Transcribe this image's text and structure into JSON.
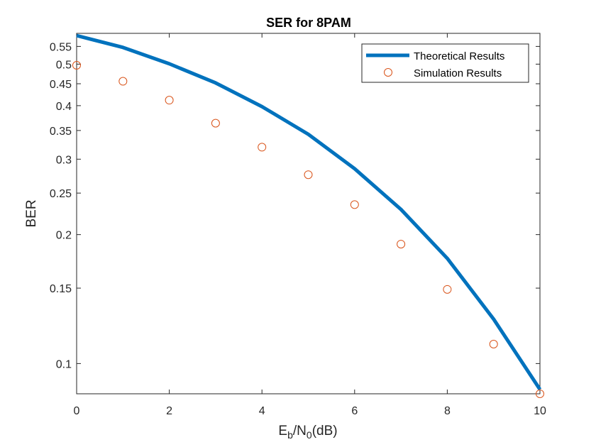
{
  "chart_data": {
    "type": "line",
    "title": "SER for 8PAM",
    "xlabel": {
      "base": "E",
      "sub1": "b",
      "mid": "/N",
      "sub2": "0",
      "tail": "(dB)"
    },
    "ylabel": "BER",
    "xlim": [
      0,
      10
    ],
    "ylim": [
      0.085,
      0.59
    ],
    "yscale": "log",
    "xticks": [
      0,
      2,
      4,
      6,
      8,
      10
    ],
    "yticks": [
      0.1,
      0.15,
      0.2,
      0.25,
      0.3,
      0.35,
      0.4,
      0.45,
      0.5,
      0.55
    ],
    "ytick_labels": [
      "0.1",
      "0.15",
      "0.2",
      "0.25",
      "0.3",
      "0.35",
      "0.4",
      "0.45",
      "0.5",
      "0.55"
    ],
    "xtick_labels": [
      "0",
      "2",
      "4",
      "6",
      "8",
      "10"
    ],
    "grid": false,
    "legend_position": "top-right",
    "series": [
      {
        "name": "Theoretical Results",
        "style": "line",
        "color": "#0072BD",
        "x": [
          0,
          1,
          2,
          3,
          4,
          5,
          6,
          7,
          8,
          9,
          10
        ],
        "y": [
          0.583,
          0.547,
          0.501,
          0.452,
          0.398,
          0.343,
          0.285,
          0.229,
          0.176,
          0.127,
          0.087
        ]
      },
      {
        "name": "Simulation Results",
        "style": "marker",
        "color": "#D95319",
        "x": [
          0,
          1,
          2,
          3,
          4,
          5,
          6,
          7,
          8,
          9,
          10
        ],
        "y": [
          0.497,
          0.456,
          0.412,
          0.364,
          0.32,
          0.276,
          0.235,
          0.19,
          0.149,
          0.111,
          0.085
        ]
      }
    ]
  }
}
